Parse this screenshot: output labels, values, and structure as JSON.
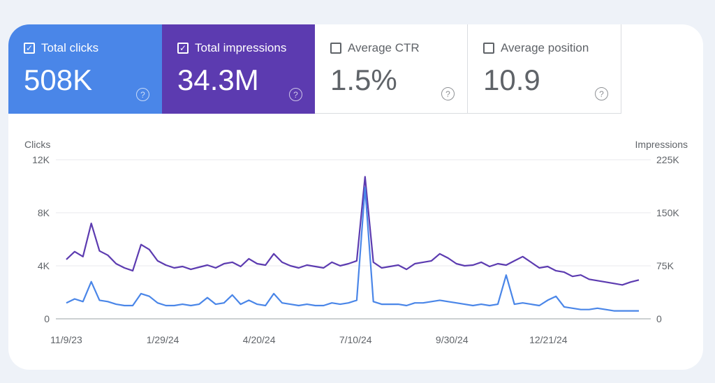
{
  "metrics": [
    {
      "label": "Total clicks",
      "value": "508K",
      "checked": true,
      "color": "#4a86e8"
    },
    {
      "label": "Total impressions",
      "value": "34.3M",
      "checked": true,
      "color": "#5c3bb0"
    },
    {
      "label": "Average CTR",
      "value": "1.5%",
      "checked": false
    },
    {
      "label": "Average position",
      "value": "10.9",
      "checked": false
    }
  ],
  "help_glyph": "?",
  "check_glyph": "✓",
  "chart_data": {
    "type": "line",
    "left_axis": {
      "label": "Clicks",
      "ticks": [
        "0",
        "4K",
        "8K",
        "12K"
      ],
      "tick_values": [
        0,
        4000,
        8000,
        12000
      ],
      "range": [
        0,
        12000
      ]
    },
    "right_axis": {
      "label": "Impressions",
      "ticks": [
        "0",
        "75K",
        "150K",
        "225K"
      ],
      "tick_values": [
        0,
        75000,
        150000,
        225000
      ],
      "range": [
        0,
        225000
      ]
    },
    "x_ticks": [
      "11/9/23",
      "1/29/24",
      "4/20/24",
      "7/10/24",
      "9/30/24",
      "12/21/24"
    ],
    "x_tick_day_offsets": [
      0,
      82,
      164,
      246,
      328,
      410
    ],
    "x_range_days": [
      0,
      487
    ],
    "sampling": "weekly",
    "series": [
      {
        "name": "Impressions",
        "axis": "right",
        "color": "#5c3bb0",
        "unit": "K",
        "values": [
          84,
          95,
          88,
          135,
          96,
          90,
          78,
          72,
          68,
          105,
          98,
          82,
          76,
          72,
          74,
          70,
          73,
          76,
          72,
          78,
          80,
          74,
          85,
          78,
          76,
          92,
          80,
          75,
          72,
          76,
          74,
          72,
          80,
          75,
          78,
          82,
          201,
          80,
          72,
          74,
          76,
          70,
          78,
          80,
          82,
          92,
          86,
          78,
          75,
          76,
          80,
          74,
          78,
          76,
          82,
          88,
          80,
          72,
          74,
          68,
          66,
          60,
          62,
          56,
          54,
          52,
          50,
          48,
          52,
          55
        ]
      },
      {
        "name": "Clicks",
        "axis": "left",
        "color": "#4a86e8",
        "unit": "K",
        "values": [
          1.2,
          1.5,
          1.3,
          2.8,
          1.4,
          1.3,
          1.1,
          1.0,
          1.0,
          1.9,
          1.7,
          1.2,
          1.0,
          1.0,
          1.1,
          1.0,
          1.1,
          1.6,
          1.1,
          1.2,
          1.8,
          1.1,
          1.4,
          1.1,
          1.0,
          1.9,
          1.2,
          1.1,
          1.0,
          1.1,
          1.0,
          1.0,
          1.2,
          1.1,
          1.2,
          1.4,
          9.9,
          1.3,
          1.1,
          1.1,
          1.1,
          1.0,
          1.2,
          1.2,
          1.3,
          1.4,
          1.3,
          1.2,
          1.1,
          1.0,
          1.1,
          1.0,
          1.1,
          3.3,
          1.1,
          1.2,
          1.1,
          1.0,
          1.4,
          1.7,
          0.9,
          0.8,
          0.7,
          0.7,
          0.8,
          0.7,
          0.6,
          0.6,
          0.6,
          0.6
        ]
      }
    ]
  }
}
